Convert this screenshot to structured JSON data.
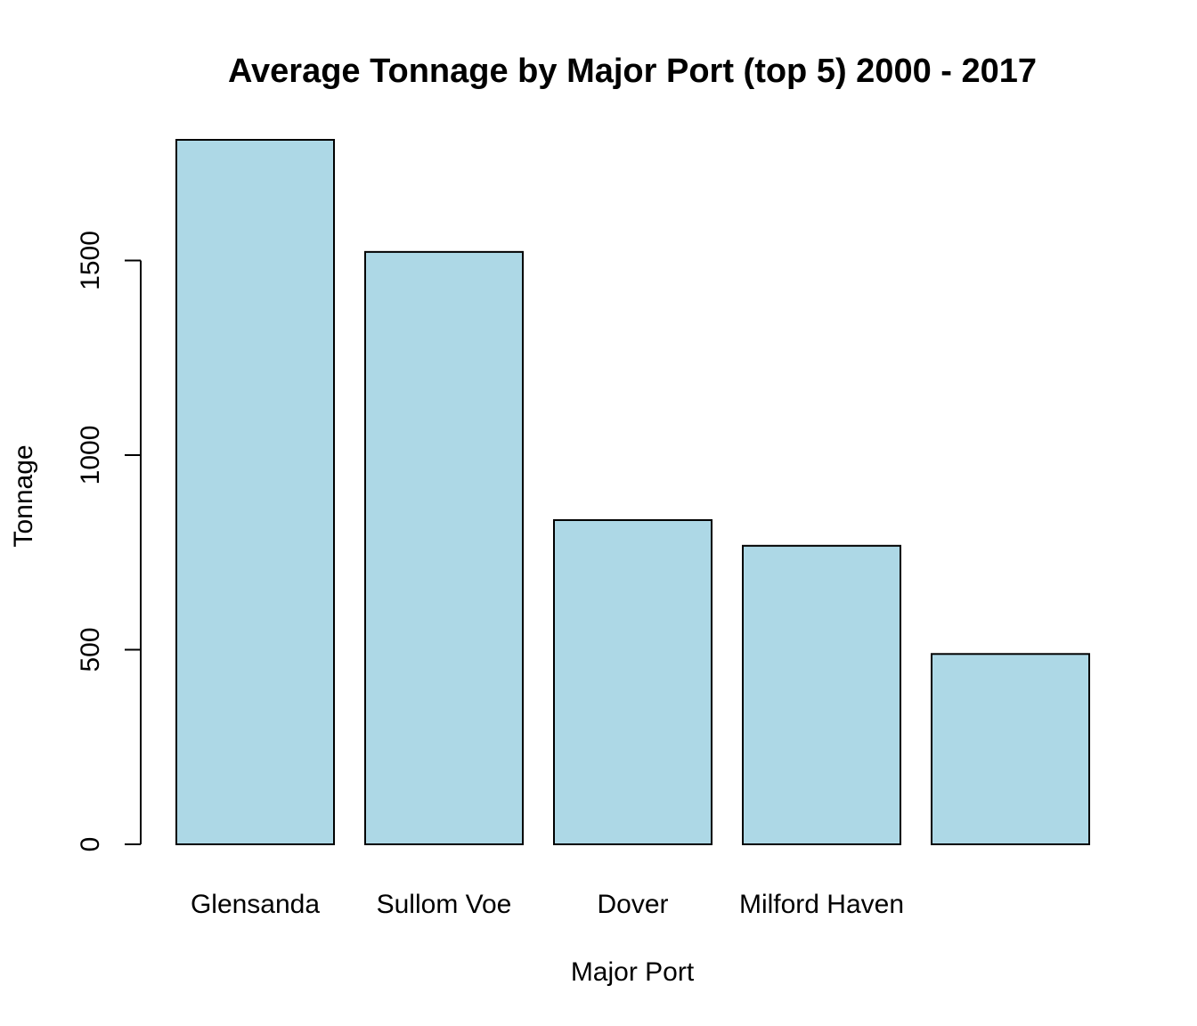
{
  "chart_data": {
    "type": "bar",
    "title": "Average Tonnage by Major Port (top 5) 2000 - 2017",
    "xlabel": "Major Port",
    "ylabel": "Tonnage",
    "categories": [
      "Glensanda",
      "Sullom Voe",
      "Dover",
      "Milford Haven",
      ""
    ],
    "values": [
      1810,
      1522,
      833,
      767,
      489
    ],
    "ylim": [
      0,
      1810
    ],
    "yticks": [
      0,
      500,
      1000,
      1500
    ],
    "bar_color": "#add8e6",
    "border_color": "#000000",
    "grid": false,
    "legend": "none"
  }
}
